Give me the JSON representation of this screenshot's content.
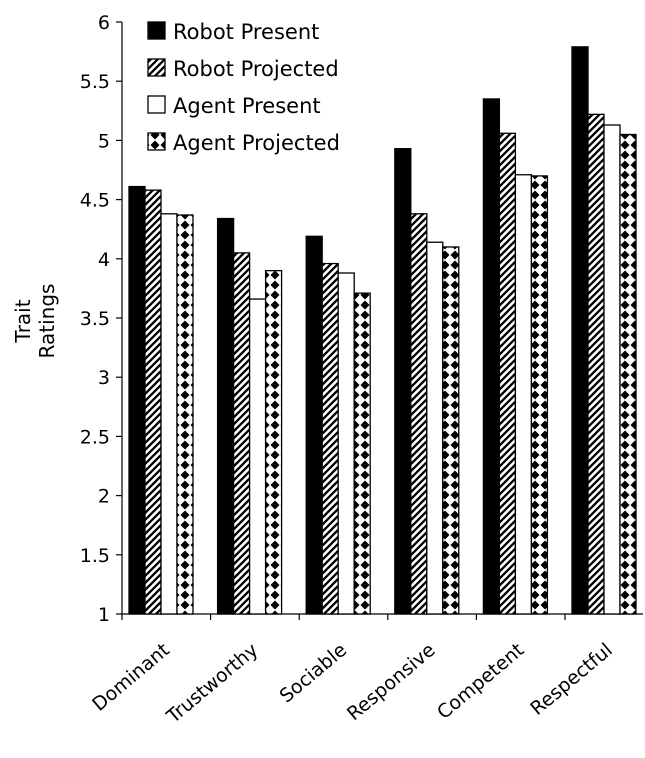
{
  "chart_data": {
    "type": "bar",
    "title": "",
    "xlabel": "",
    "ylabel": [
      "Trait",
      "Ratings"
    ],
    "ylim": [
      1,
      6
    ],
    "ytick_step": 0.5,
    "ytick_labels": [
      "1",
      "1.5",
      "2",
      "2.5",
      "3",
      "3.5",
      "4",
      "4.5",
      "5",
      "5.5",
      "6"
    ],
    "categories": [
      "Dominant",
      "Trustworthy",
      "Sociable",
      "Responsive",
      "Competent",
      "Respectful"
    ],
    "series": [
      {
        "name": "Robot Present",
        "pattern": "solid",
        "values": [
          4.61,
          4.34,
          4.19,
          4.93,
          5.35,
          5.79
        ]
      },
      {
        "name": "Robot Projected",
        "pattern": "hatch",
        "values": [
          4.58,
          4.05,
          3.96,
          4.38,
          5.06,
          5.22
        ]
      },
      {
        "name": "Agent Present",
        "pattern": "white",
        "values": [
          4.38,
          3.66,
          3.88,
          4.14,
          4.71,
          5.13
        ]
      },
      {
        "name": "Agent Projected",
        "pattern": "dots",
        "values": [
          4.37,
          3.9,
          3.71,
          4.1,
          4.7,
          5.05
        ]
      }
    ],
    "legend_position": "top-left",
    "grid": false,
    "colors": {
      "ink": "#000000",
      "fill": "#ffffff"
    }
  }
}
